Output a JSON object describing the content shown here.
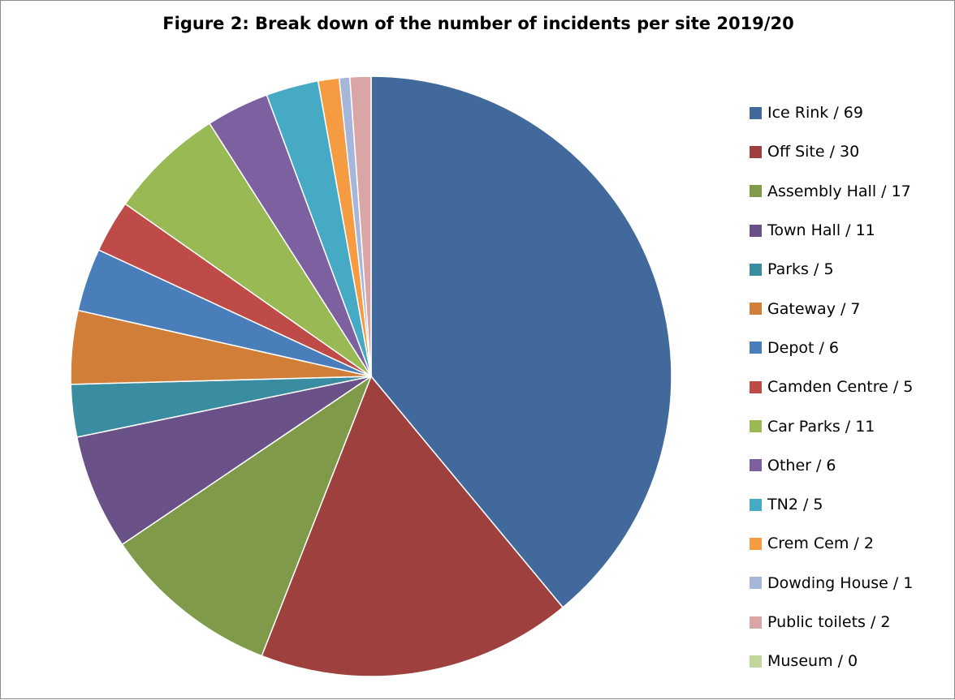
{
  "chart_data": {
    "type": "pie",
    "title": "Figure 2: Break down of the number of incidents per site 2019/20",
    "legend_position": "right",
    "start_angle": "12 o'clock",
    "direction": "clockwise",
    "slices": [
      {
        "label": "Ice Rink / 69",
        "category": "Ice Rink",
        "value": 69,
        "color": "#41699B"
      },
      {
        "label": "Off Site / 30",
        "category": "Off Site",
        "value": 30,
        "color": "#9E413E"
      },
      {
        "label": "Assembly Hall / 17",
        "category": "Assembly Hall",
        "value": 17,
        "color": "#7F9A48"
      },
      {
        "label": "Town Hall / 11",
        "category": "Town Hall",
        "value": 11,
        "color": "#6A5288"
      },
      {
        "label": "Parks / 5",
        "category": "Parks",
        "value": 5,
        "color": "#3A8DA0"
      },
      {
        "label": "Gateway / 7",
        "category": "Gateway",
        "value": 7,
        "color": "#D17E38"
      },
      {
        "label": "Depot / 6",
        "category": "Depot",
        "value": 6,
        "color": "#4A7EBB"
      },
      {
        "label": "Camden Centre / 5",
        "category": "Camden Centre",
        "value": 5,
        "color": "#BE4B48"
      },
      {
        "label": "Car Parks / 11",
        "category": "Car Parks",
        "value": 11,
        "color": "#98B954"
      },
      {
        "label": "Other / 6",
        "category": "Other",
        "value": 6,
        "color": "#7D60A0"
      },
      {
        "label": "TN2 / 5",
        "category": "TN2",
        "value": 5,
        "color": "#46AAC4"
      },
      {
        "label": "Crem Cem / 2",
        "category": "Crem Cem",
        "value": 2,
        "color": "#F59B42"
      },
      {
        "label": "Dowding House / 1",
        "category": "Dowding House",
        "value": 1,
        "color": "#A5B6DA"
      },
      {
        "label": "Public toilets / 2",
        "category": "Public toilets",
        "value": 2,
        "color": "#D9A6A5"
      },
      {
        "label": "Museum / 0",
        "category": "Museum",
        "value": 0,
        "color": "#C3D69B"
      }
    ]
  }
}
